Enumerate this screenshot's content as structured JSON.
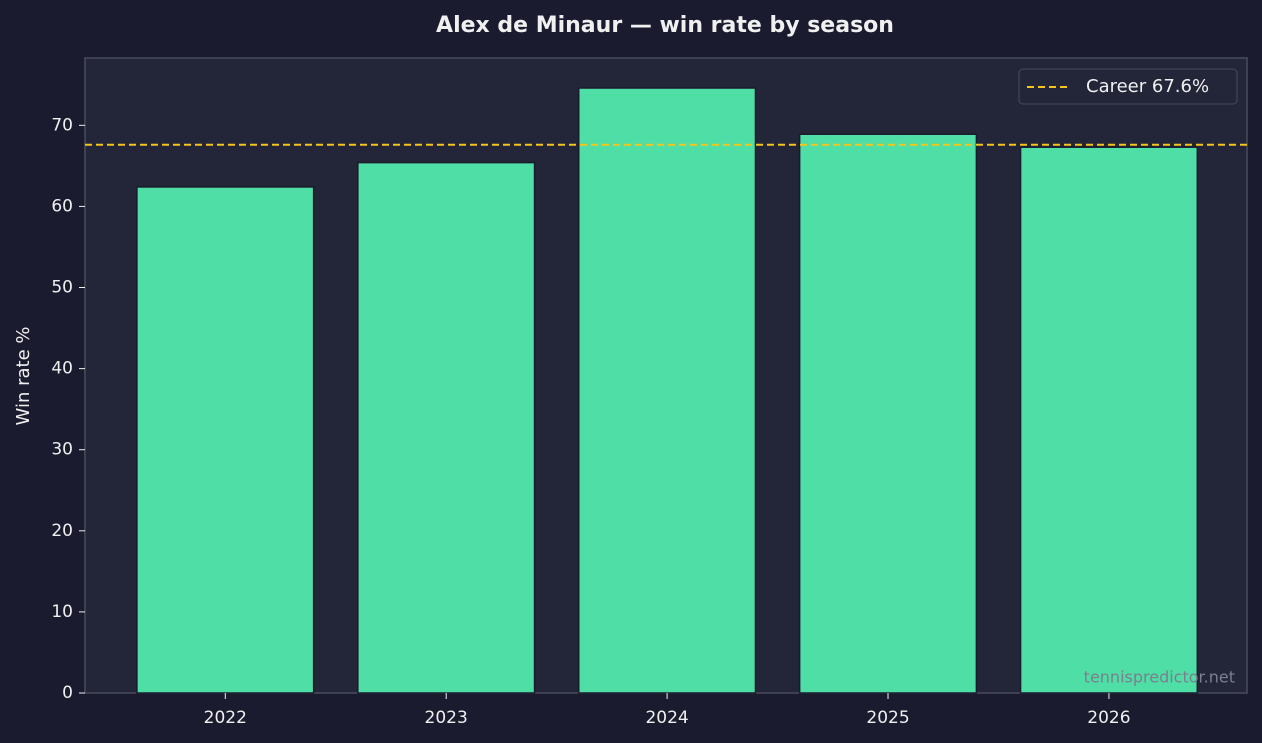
{
  "chart_data": {
    "type": "bar",
    "title": "Alex de Minaur — win rate by season",
    "y_label": "Win rate %",
    "categories": [
      "2022",
      "2023",
      "2024",
      "2025",
      "2026"
    ],
    "values": [
      62.4,
      65.4,
      74.6,
      68.9,
      67.3
    ],
    "color": "#4fdea6",
    "ylim": [
      0,
      78.3
    ],
    "yticks": [
      0,
      10,
      20,
      30,
      40,
      50,
      60,
      70
    ],
    "reference_line": {
      "name": "Career 67.6%",
      "value": 67.6,
      "color": "#f5c518"
    },
    "legend": "upper right",
    "watermark": "tennispredictor.net"
  }
}
